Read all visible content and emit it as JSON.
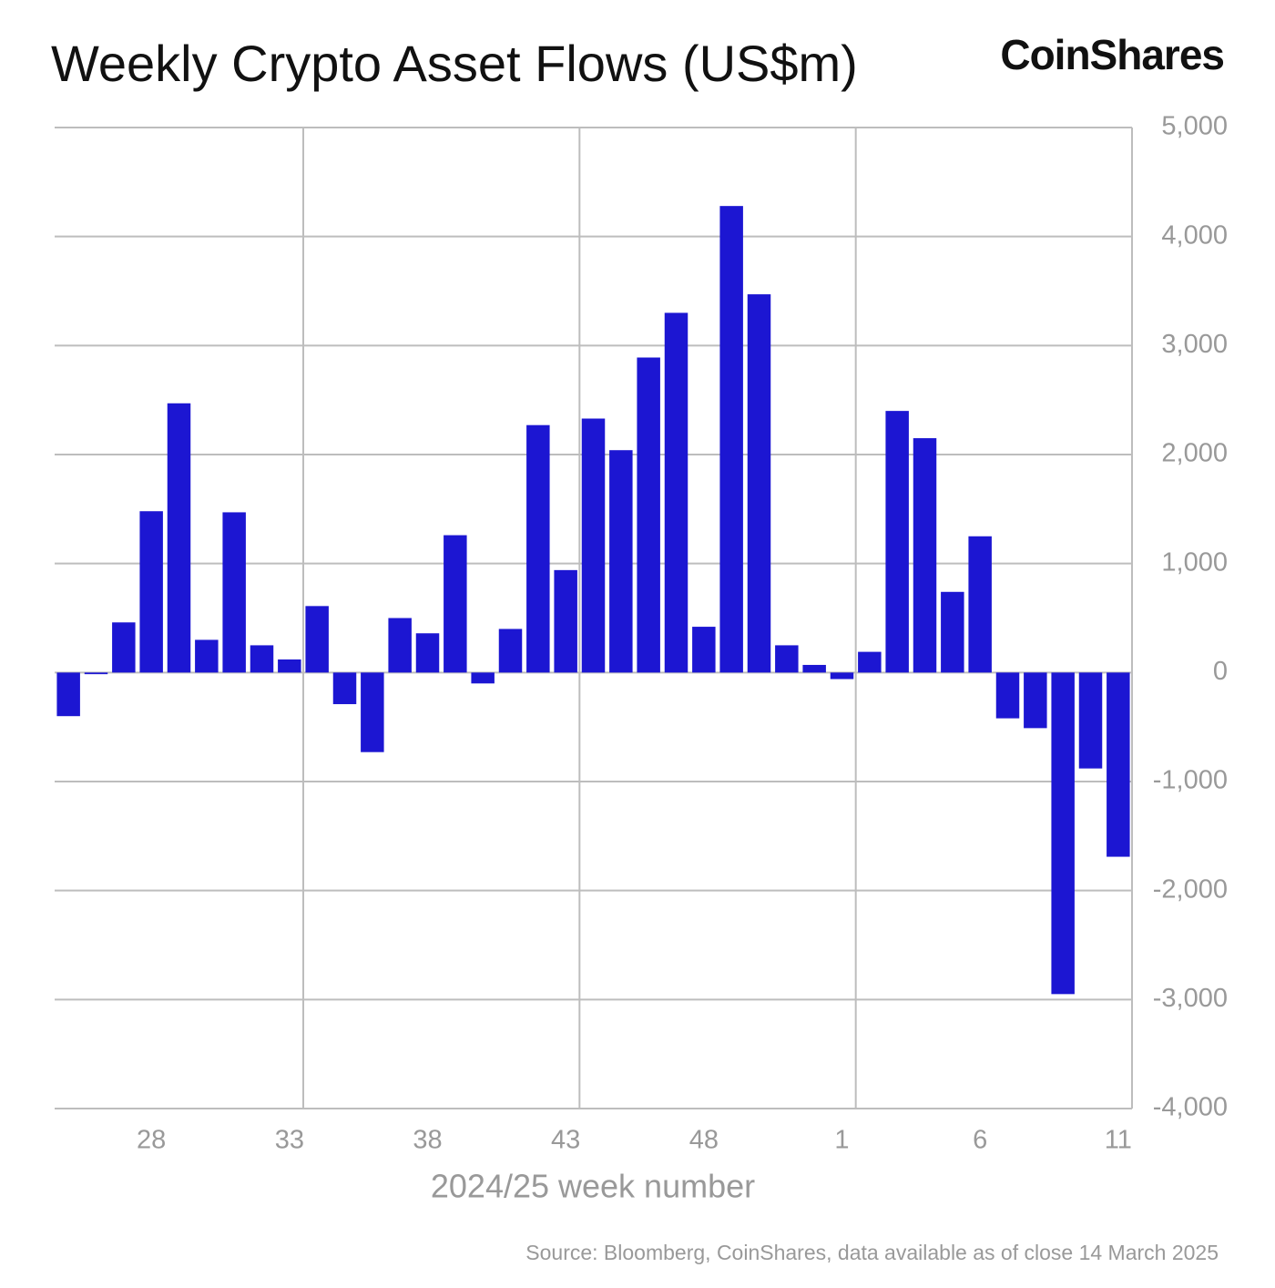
{
  "chart_data": {
    "type": "bar",
    "title": "Weekly Crypto Asset Flows (US$m)",
    "brand": "CoinShares",
    "x_label": "2024/25 week number",
    "source": "Source: Bloomberg, CoinShares, data available as of close 14 March 2025",
    "categories": [
      null,
      null,
      null,
      "28",
      null,
      null,
      null,
      null,
      "33",
      null,
      null,
      null,
      null,
      "38",
      null,
      null,
      null,
      null,
      "43",
      null,
      null,
      null,
      null,
      "48",
      null,
      null,
      null,
      null,
      "1",
      null,
      null,
      null,
      null,
      "6",
      null,
      null,
      null,
      null,
      "11"
    ],
    "values": [
      -400,
      -15,
      460,
      1480,
      2470,
      300,
      1470,
      250,
      120,
      610,
      -290,
      -730,
      500,
      360,
      1260,
      -100,
      400,
      2270,
      940,
      2330,
      2040,
      2890,
      3300,
      420,
      4280,
      3470,
      250,
      70,
      -60,
      190,
      2400,
      2150,
      740,
      1250,
      -420,
      -510,
      -2950,
      -880,
      -1690
    ],
    "color": "#1c16d2",
    "ylim": [
      -4000,
      5000
    ],
    "yticks": [
      {
        "value": -4000,
        "label": "-4,000"
      },
      {
        "value": -3000,
        "label": "-3,000"
      },
      {
        "value": -2000,
        "label": "-2,000"
      },
      {
        "value": -1000,
        "label": "-1,000"
      },
      0,
      {
        "value": 1000,
        "label": "1,000"
      },
      {
        "value": 2000,
        "label": "2,000"
      },
      {
        "value": 3000,
        "label": "3,000"
      },
      {
        "value": 4000,
        "label": "4,000"
      },
      {
        "value": 5000,
        "label": "5,000"
      }
    ],
    "grid": true
  }
}
